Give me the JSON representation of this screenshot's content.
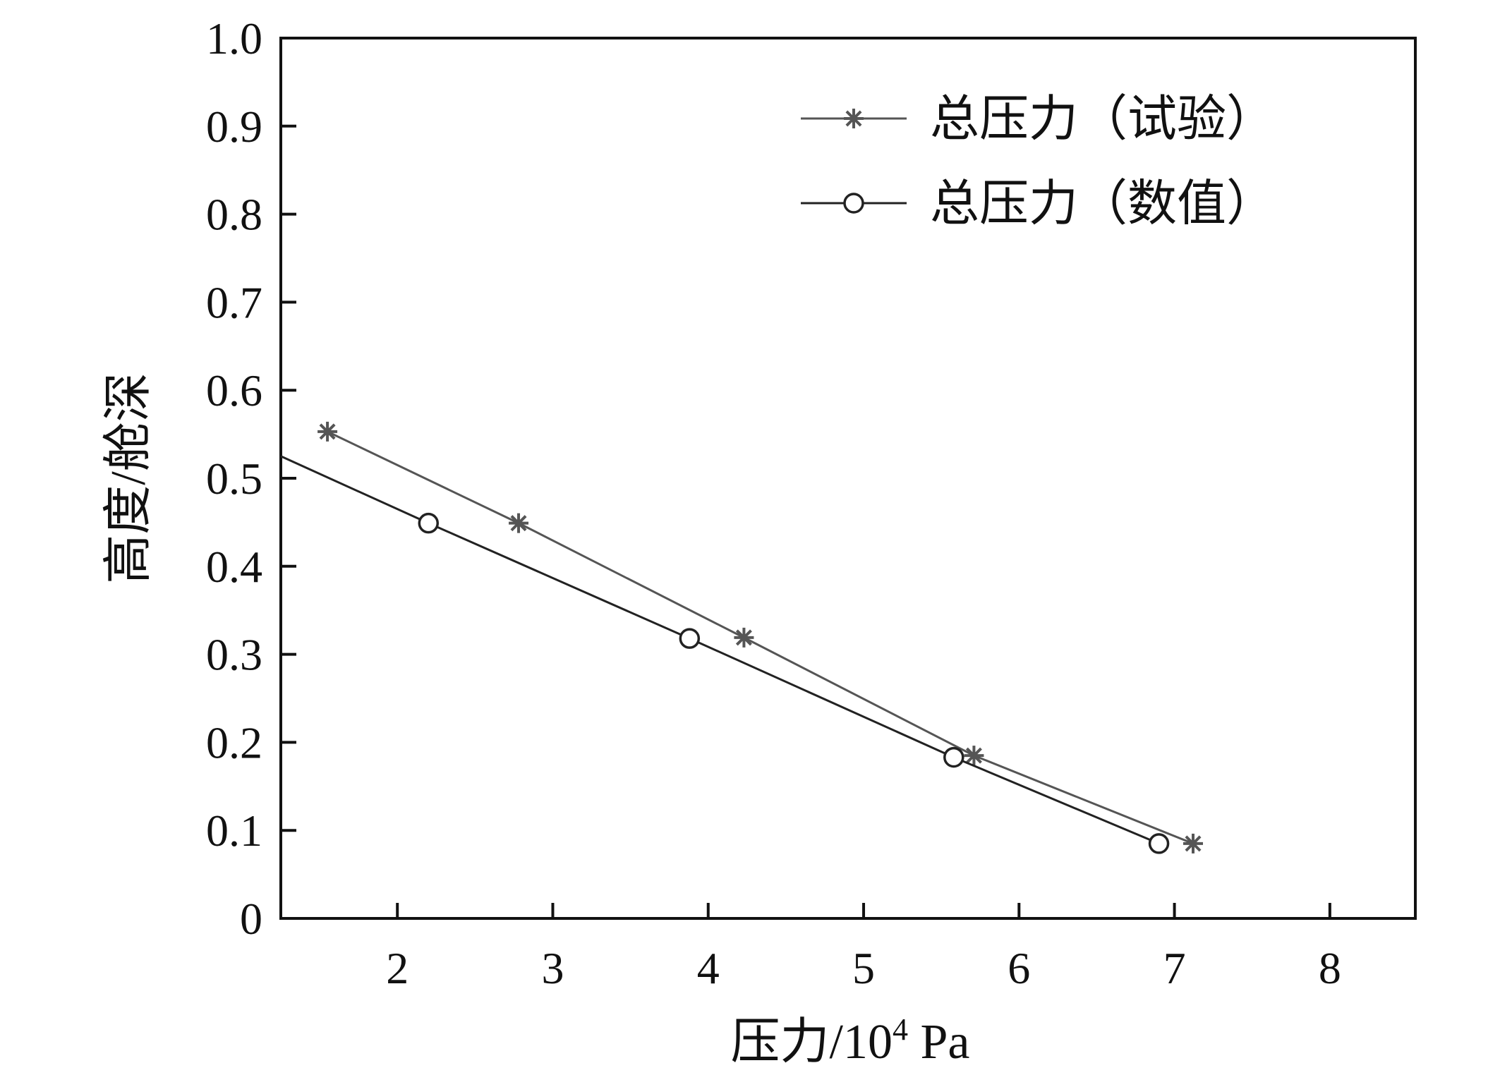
{
  "chart_data": {
    "type": "line",
    "title": "",
    "xlabel": "压力/10⁴ Pa",
    "ylabel": "高度/舱深",
    "xlim": [
      1.25,
      8.55
    ],
    "ylim": [
      0,
      1.0
    ],
    "xticks": [
      "2",
      "3",
      "4",
      "5",
      "6",
      "7",
      "8"
    ],
    "yticks": [
      "0",
      "0.1",
      "0.2",
      "0.3",
      "0.4",
      "0.5",
      "0.6",
      "0.7",
      "0.8",
      "0.9",
      "1.0"
    ],
    "grid": false,
    "legend_position": "top-right",
    "series": [
      {
        "name": "总压力（试验）",
        "marker": "asterisk",
        "color": "#555555",
        "points": [
          [
            1.55,
            0.553
          ],
          [
            2.78,
            0.449
          ],
          [
            4.23,
            0.319
          ],
          [
            5.71,
            0.185
          ],
          [
            7.12,
            0.085
          ]
        ]
      },
      {
        "name": "总压力（数值）",
        "marker": "circle",
        "color": "#222222",
        "points": [
          [
            1.25,
            0.525
          ],
          [
            2.2,
            0.449
          ],
          [
            3.88,
            0.318
          ],
          [
            5.58,
            0.183
          ],
          [
            6.9,
            0.085
          ]
        ]
      }
    ]
  }
}
